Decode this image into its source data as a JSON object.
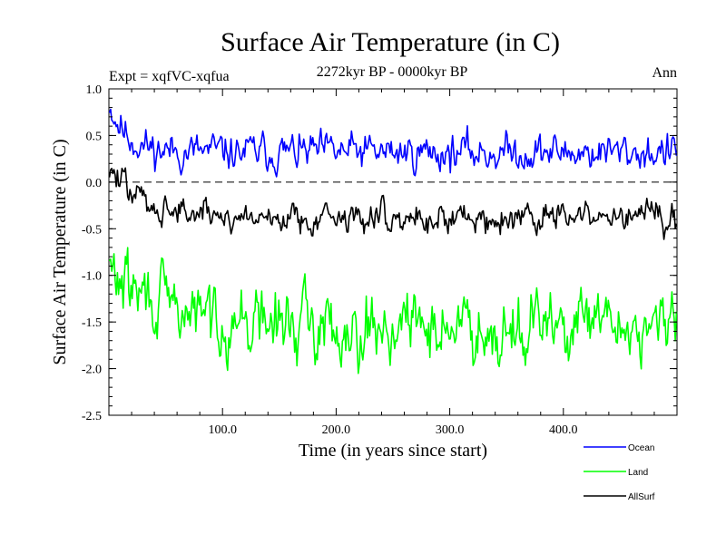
{
  "chart_data": {
    "type": "line",
    "title": "Surface Air Temperature (in C)",
    "subtitle": "2272kyr BP - 0000kyr BP",
    "experiment_label": "Expt = xqfVC-xqfua",
    "season_label": "Ann",
    "xlabel": "Time (in years since start)",
    "ylabel": "Surface Air Temperature (in C)",
    "xlim": [
      0,
      500
    ],
    "ylim": [
      -2.5,
      1.0
    ],
    "x_ticks": [
      100,
      200,
      300,
      400
    ],
    "x_tick_labels": [
      "100.0",
      "200.0",
      "300.0",
      "400.0"
    ],
    "y_ticks": [
      1.0,
      0.5,
      0.0,
      -0.5,
      -1.0,
      -1.5,
      -2.0,
      -2.5
    ],
    "y_tick_labels": [
      "1.0",
      "0.5",
      "0.0",
      "-0.5",
      "-1.0",
      "-1.5",
      "-2.0",
      "-2.5"
    ],
    "zero_line": 0.0,
    "legend_position": "bottom-right",
    "series": [
      {
        "name": "Ocean",
        "color": "#0000ff",
        "mean": 0.32,
        "amplitude": 0.12,
        "start_value": 0.85,
        "start_decay_years": 15,
        "seed": 11
      },
      {
        "name": "Land",
        "color": "#00ff00",
        "mean": -1.55,
        "amplitude": 0.22,
        "start_value": -0.95,
        "start_decay_years": 50,
        "seed": 29
      },
      {
        "name": "AllSurf",
        "color": "#000000",
        "mean": -0.38,
        "amplitude": 0.1,
        "start_value": 0.15,
        "start_decay_years": 30,
        "seed": 47
      }
    ],
    "n_points": 500
  }
}
